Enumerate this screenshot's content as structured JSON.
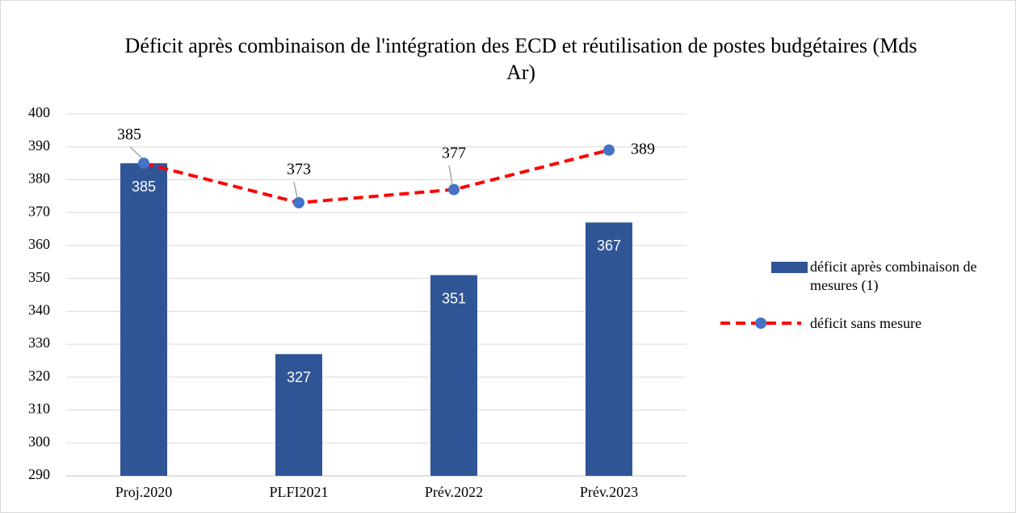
{
  "chart_data": {
    "type": "combo",
    "title": "Déficit après combinaison de l'intégration des ECD et réutilisation de postes budgétaires (Mds Ar)",
    "categories": [
      "Proj.2020",
      "PLFI2021",
      "Prév.2022",
      "Prév.2023"
    ],
    "series": [
      {
        "name": "déficit après combinaison de mesures (1)",
        "type": "bar",
        "color": "#2f5597",
        "values": [
          385,
          327,
          351,
          367
        ]
      },
      {
        "name": "déficit sans mesure",
        "type": "line",
        "color": "#ff0000",
        "marker_color": "#4472c4",
        "dashed": true,
        "values": [
          385,
          373,
          377,
          389
        ]
      }
    ],
    "ylim": [
      290,
      400
    ],
    "yticks": [
      290,
      300,
      310,
      320,
      330,
      340,
      350,
      360,
      370,
      380,
      390,
      400
    ],
    "grid": true,
    "legend": "right"
  }
}
